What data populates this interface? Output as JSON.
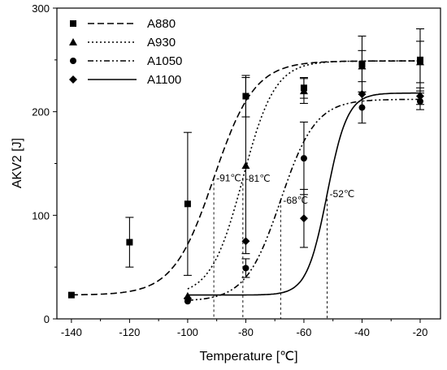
{
  "chart_data": {
    "type": "line",
    "title": "",
    "xlabel": "Temperature [℃]",
    "ylabel": "AKV2 [J]",
    "xlim": [
      -145,
      -13
    ],
    "ylim": [
      0,
      300
    ],
    "xticks": [
      -140,
      -120,
      -100,
      -80,
      -60,
      -40,
      -20
    ],
    "yticks": [
      0,
      100,
      200,
      300
    ],
    "x_tick_labels": [
      "-140",
      "-120",
      "-100",
      "-80",
      "-60",
      "-40",
      "-20"
    ],
    "y_tick_labels": [
      "0",
      "100",
      "200",
      "300"
    ],
    "grid": false,
    "legend_position": "top-left",
    "series": [
      {
        "name": "A880",
        "marker": "square",
        "line_style": "dashed",
        "color": "#000000",
        "points": [
          {
            "x": -140,
            "y": 23
          },
          {
            "x": -120,
            "y": 74,
            "err": 24
          },
          {
            "x": -100,
            "y": 111,
            "err": 69
          },
          {
            "x": -80,
            "y": 215,
            "err": 20
          },
          {
            "x": -60,
            "y": 223,
            "err": 10
          },
          {
            "x": -40,
            "y": 246,
            "err": 27
          },
          {
            "x": -20,
            "y": 250,
            "err": 30
          }
        ],
        "fit": {
          "lower": 23,
          "upper": 249,
          "t50": -91,
          "width": 7
        }
      },
      {
        "name": "A930",
        "marker": "triangle",
        "line_style": "dotted",
        "color": "#000000",
        "points": [
          {
            "x": -100,
            "y": 22
          },
          {
            "x": -80,
            "y": 148,
            "err": 85
          },
          {
            "x": -60,
            "y": 220,
            "err": 12
          },
          {
            "x": -40,
            "y": 244,
            "err": 15
          },
          {
            "x": -20,
            "y": 248,
            "err": 20
          }
        ],
        "fit": {
          "lower": 22,
          "upper": 249,
          "t50": -81,
          "width": 5.5
        }
      },
      {
        "name": "A1050",
        "marker": "circle",
        "line_style": "dashdotdot",
        "color": "#000000",
        "points": [
          {
            "x": -100,
            "y": 17
          },
          {
            "x": -80,
            "y": 49,
            "err": 9
          },
          {
            "x": -60,
            "y": 155,
            "err": 35
          },
          {
            "x": -40,
            "y": 204,
            "err": 15
          },
          {
            "x": -20,
            "y": 210,
            "err": 8
          }
        ],
        "fit": {
          "lower": 17,
          "upper": 212,
          "t50": -68,
          "width": 6
        }
      },
      {
        "name": "A1100",
        "marker": "diamond",
        "line_style": "solid",
        "color": "#000000",
        "points": [
          {
            "x": -100,
            "y": 20
          },
          {
            "x": -80,
            "y": 75
          },
          {
            "x": -60,
            "y": 97,
            "err": 28
          },
          {
            "x": -40,
            "y": 217
          },
          {
            "x": -20,
            "y": 215,
            "err": 8
          }
        ],
        "fit": {
          "lower": 23,
          "upper": 218,
          "t50": -52,
          "width": 3.5
        }
      }
    ],
    "annotations": [
      {
        "text": "-91℃",
        "x": -91,
        "y": 136
      },
      {
        "text": "-81℃",
        "x": -81,
        "y": 135.5
      },
      {
        "text": "-68℃",
        "x": -68,
        "y": 114.5
      },
      {
        "text": "-52℃",
        "x": -52,
        "y": 120.5
      }
    ]
  }
}
